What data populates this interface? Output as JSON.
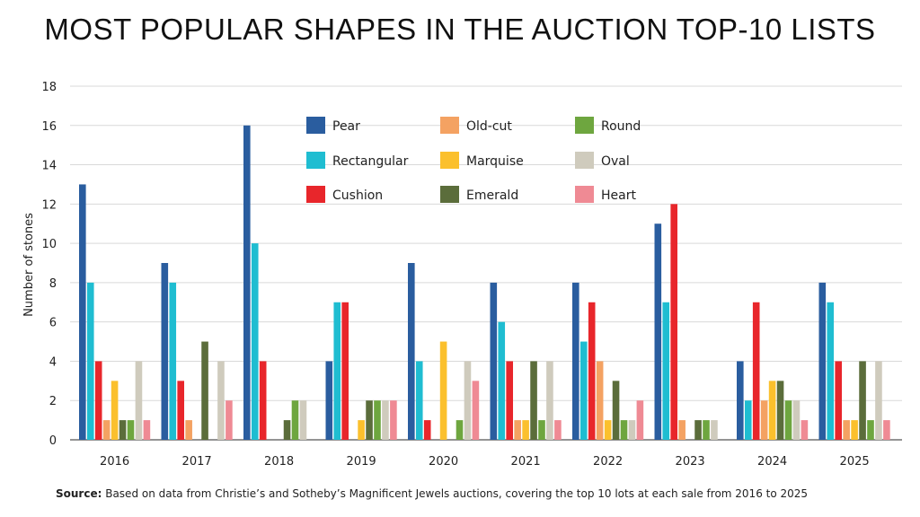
{
  "chart_data": {
    "type": "bar",
    "title": "MOST POPULAR SHAPES IN THE AUCTION TOP-10 LISTS",
    "ylabel": "Number of stones",
    "xlabel": "",
    "ylim": [
      0,
      18
    ],
    "yticks": [
      0,
      2,
      4,
      6,
      8,
      10,
      12,
      14,
      16,
      18
    ],
    "grid": true,
    "legend_position": "top-center",
    "categories": [
      "2016",
      "2017",
      "2018",
      "2019",
      "2020",
      "2021",
      "2022",
      "2023",
      "2024",
      "2025"
    ],
    "series": [
      {
        "name": "Pear",
        "color": "#2a5d9f",
        "values": [
          13,
          9,
          16,
          4,
          9,
          8,
          8,
          11,
          4,
          8
        ]
      },
      {
        "name": "Rectangular",
        "color": "#1fbdd1",
        "values": [
          8,
          8,
          10,
          7,
          4,
          6,
          5,
          7,
          2,
          7
        ]
      },
      {
        "name": "Cushion",
        "color": "#e8262b",
        "values": [
          4,
          3,
          4,
          7,
          1,
          4,
          7,
          12,
          7,
          4
        ]
      },
      {
        "name": "Old-cut",
        "color": "#f4a262",
        "values": [
          1,
          1,
          0,
          0,
          0,
          1,
          4,
          1,
          2,
          1
        ]
      },
      {
        "name": "Marquise",
        "color": "#fbc02d",
        "values": [
          3,
          0,
          0,
          1,
          5,
          1,
          1,
          0,
          3,
          1
        ]
      },
      {
        "name": "Emerald",
        "color": "#5b6d3b",
        "values": [
          1,
          5,
          1,
          2,
          0,
          4,
          3,
          1,
          3,
          4
        ]
      },
      {
        "name": "Round",
        "color": "#6ea63f",
        "values": [
          1,
          0,
          2,
          2,
          1,
          1,
          1,
          1,
          2,
          1
        ]
      },
      {
        "name": "Oval",
        "color": "#cfcbbd",
        "values": [
          4,
          4,
          2,
          2,
          4,
          4,
          1,
          1,
          2,
          4
        ]
      },
      {
        "name": "Heart",
        "color": "#ef8a94",
        "values": [
          1,
          2,
          0,
          2,
          3,
          1,
          2,
          0,
          1,
          1
        ]
      }
    ]
  },
  "source": {
    "label": "Source:",
    "text": " Based on data from Christie’s and Sotheby’s Magnificent Jewels auctions, covering the top 10 lots at each sale from 2016 to 2025"
  }
}
